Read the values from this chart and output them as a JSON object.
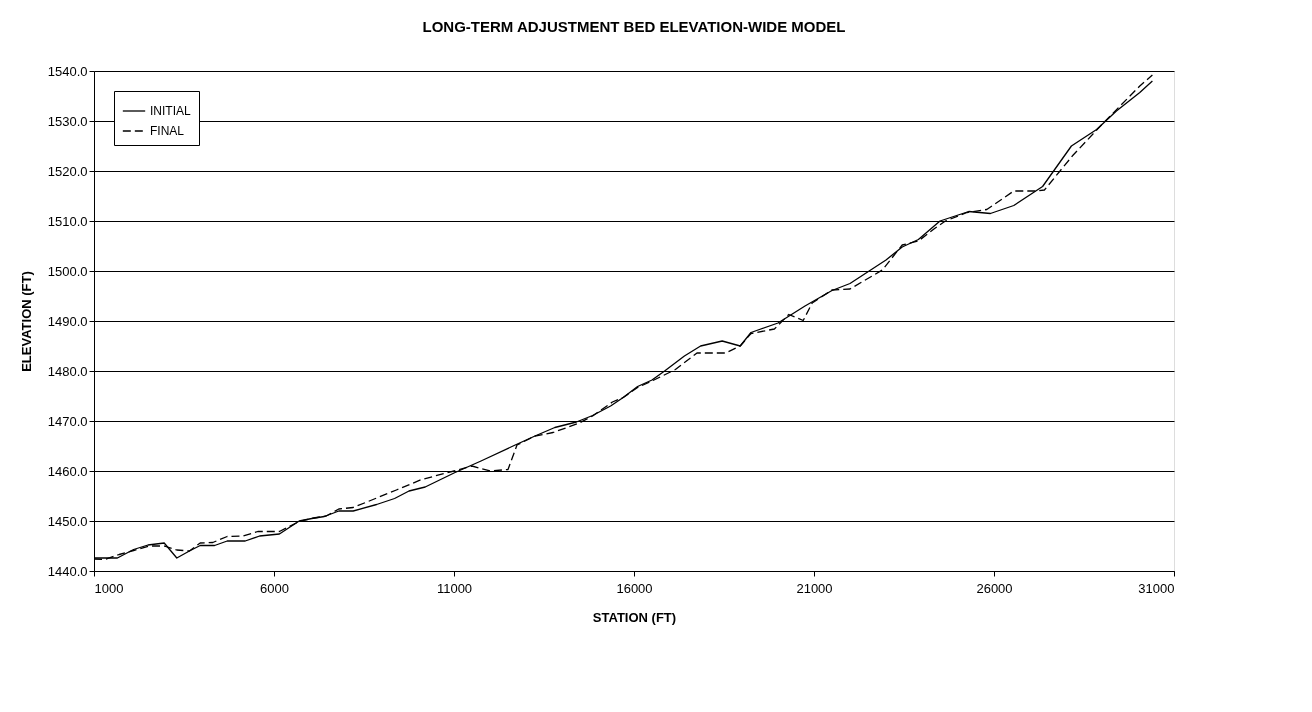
{
  "chart_data": {
    "type": "line",
    "title": "LONG-TERM ADJUSTMENT BED ELEVATION-WIDE MODEL",
    "xlabel": "STATION (FT)",
    "ylabel": "ELEVATION (FT)",
    "xlim": [
      1000,
      31000
    ],
    "xticks": [
      1000,
      6000,
      11000,
      16000,
      21000,
      26000,
      31000
    ],
    "ylim": [
      1440,
      1540
    ],
    "yticks": [
      {
        "value": 1440,
        "label": "1440.0"
      },
      {
        "value": 1450,
        "label": "1450.0"
      },
      {
        "value": 1460,
        "label": "1460.0"
      },
      {
        "value": 1470,
        "label": "1470.0"
      },
      {
        "value": 1480,
        "label": "1480.0"
      },
      {
        "value": 1490,
        "label": "1490.0"
      },
      {
        "value": 1500,
        "label": "1500.0"
      },
      {
        "value": 1510,
        "label": "1510.0"
      },
      {
        "value": 1520,
        "label": "1520.0"
      },
      {
        "value": 1530,
        "label": "1530.0"
      },
      {
        "value": 1540,
        "label": "1540.0"
      }
    ],
    "grid": "y",
    "legend": "top left",
    "marker": "none",
    "series": [
      {
        "name": "INITIAL",
        "color": "#000000",
        "line_style": "solid",
        "x": [
          1000,
          1650,
          2100,
          2500,
          2950,
          3300,
          3650,
          3950,
          4350,
          4700,
          5200,
          5600,
          6150,
          6700,
          7050,
          7400,
          7800,
          8200,
          8850,
          9350,
          9750,
          10200,
          11000,
          11750,
          12700,
          13250,
          13800,
          14400,
          14850,
          15350,
          15700,
          16100,
          16500,
          16850,
          17400,
          17850,
          18450,
          18950,
          19250,
          20000,
          20750,
          21500,
          22000,
          23000,
          23450,
          23900,
          24500,
          25300,
          25900,
          26550,
          27350,
          28150,
          28850,
          29400,
          30050,
          30400
        ],
        "values": [
          1442.6,
          1442.6,
          1444.3,
          1445.2,
          1445.6,
          1442.6,
          1444.0,
          1445.1,
          1445.1,
          1446.0,
          1446.0,
          1447.0,
          1447.4,
          1450.0,
          1450.5,
          1450.9,
          1452.0,
          1452.0,
          1453.3,
          1454.5,
          1456.0,
          1456.8,
          1459.6,
          1462.0,
          1465.2,
          1467.0,
          1468.7,
          1469.8,
          1471.1,
          1473.0,
          1474.7,
          1476.9,
          1478.2,
          1480.0,
          1483.0,
          1485.0,
          1486.0,
          1485.0,
          1487.7,
          1489.6,
          1493.0,
          1496.1,
          1497.5,
          1502.2,
          1504.8,
          1506.3,
          1510.0,
          1511.9,
          1511.5,
          1513.1,
          1516.9,
          1525.0,
          1528.3,
          1532.0,
          1535.7,
          1538.0
        ]
      },
      {
        "name": "FINAL",
        "color": "#000000",
        "line_style": "dashed",
        "x": [
          1000,
          1300,
          1700,
          2100,
          2550,
          2950,
          3300,
          3650,
          3950,
          4300,
          4700,
          5150,
          5550,
          6150,
          6700,
          7100,
          7450,
          7800,
          8200,
          8750,
          9400,
          10100,
          11000,
          11500,
          12000,
          12500,
          12750,
          13250,
          13750,
          14450,
          14850,
          15400,
          15700,
          16100,
          16500,
          17150,
          17750,
          18550,
          18950,
          19250,
          19900,
          20300,
          20700,
          20950,
          21500,
          22000,
          22900,
          23450,
          23900,
          24350,
          24650,
          25250,
          25800,
          26550,
          27200,
          27400,
          28200,
          29050,
          30050,
          30400
        ],
        "values": [
          1442.4,
          1442.3,
          1443.3,
          1444.1,
          1445.0,
          1445.0,
          1444.2,
          1444.0,
          1445.6,
          1445.7,
          1446.9,
          1447.0,
          1447.9,
          1447.9,
          1449.9,
          1450.6,
          1451.0,
          1452.4,
          1452.7,
          1454.3,
          1456.2,
          1458.3,
          1460.0,
          1461.0,
          1460.0,
          1460.3,
          1465.2,
          1467.0,
          1467.7,
          1469.5,
          1471.0,
          1473.8,
          1474.7,
          1476.7,
          1478.0,
          1480.3,
          1483.6,
          1483.6,
          1485.0,
          1487.5,
          1488.4,
          1491.3,
          1490.1,
          1493.6,
          1496.2,
          1496.4,
          1500.2,
          1505.2,
          1506.0,
          1508.5,
          1510.0,
          1511.7,
          1512.3,
          1516.0,
          1516.0,
          1516.2,
          1523.2,
          1529.7,
          1537.0,
          1539.2
        ]
      }
    ]
  }
}
